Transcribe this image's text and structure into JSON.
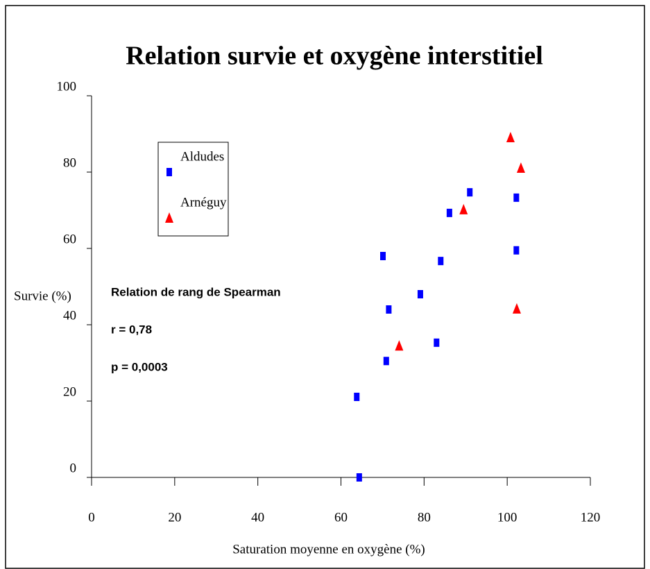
{
  "chart_data": {
    "type": "scatter",
    "title": "Relation survie et oxygène interstitiel",
    "x_label": "Saturation moyenne en oxygène (%)",
    "y_label": "Survie (%)",
    "annotations": [
      "Relation de rang de Spearman",
      "r = 0,78",
      "p = 0,0003"
    ],
    "xlim": [
      0,
      120
    ],
    "xticks": [
      0,
      20,
      40,
      60,
      80,
      100,
      120
    ],
    "ylim": [
      0,
      100
    ],
    "yticks": [
      0,
      20,
      40,
      60,
      80,
      100
    ],
    "legend": "upper left",
    "series": [
      {
        "name": "Aldudes",
        "color": "#0000ff",
        "marker": "square",
        "x": [
          63.8,
          64.4,
          70.9,
          70.1,
          71.5,
          79.1,
          83,
          84,
          86.1,
          91,
          102.2,
          102.2
        ],
        "values": [
          21.1,
          0,
          30.5,
          58,
          44,
          48,
          35.3,
          56.7,
          69.3,
          74.7,
          73.3,
          59.5
        ]
      },
      {
        "name": "Arnéguy",
        "color": "#ff0000",
        "marker": "triangle",
        "x": [
          74,
          89.5,
          100.8,
          103.3,
          102.3
        ],
        "values": [
          34.5,
          70.2,
          89.1,
          81.1,
          44.2
        ]
      }
    ]
  }
}
